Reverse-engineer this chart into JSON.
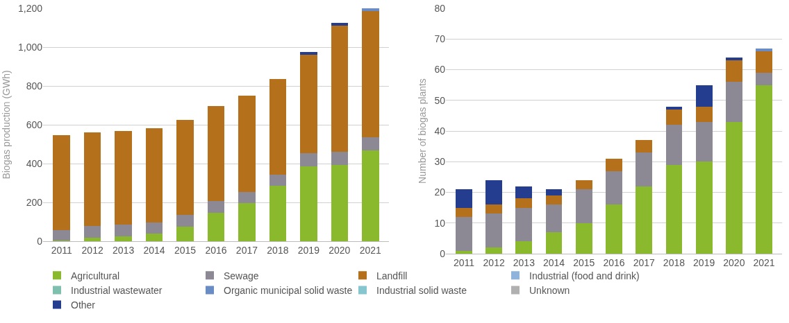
{
  "chart_data": [
    {
      "type": "bar",
      "stacked": true,
      "ylabel": "Biogas production (GWh)",
      "categories": [
        "2011",
        "2012",
        "2013",
        "2014",
        "2015",
        "2016",
        "2017",
        "2018",
        "2019",
        "2020",
        "2021"
      ],
      "ylim": [
        0,
        1200
      ],
      "yticks": [
        0,
        200,
        400,
        600,
        800,
        {
          "value": 1000,
          "label": "1,000"
        },
        {
          "value": 1200,
          "label": "1,200"
        }
      ],
      "grid": "y",
      "legend": "bottom",
      "series": [
        {
          "name": "Agricultural",
          "color": "#8ab92d",
          "values": [
            5,
            19,
            24,
            41,
            76,
            147,
            197,
            287,
            384,
            393,
            467
          ]
        },
        {
          "name": "Sewage",
          "color": "#8c8894",
          "values": [
            52,
            58,
            61,
            56,
            59,
            60,
            58,
            56,
            70,
            68,
            69
          ]
        },
        {
          "name": "Landfill",
          "color": "#b5701c",
          "values": [
            489,
            483,
            482,
            486,
            491,
            490,
            496,
            493,
            508,
            649,
            648
          ]
        },
        {
          "name": "Industrial (food and drink)",
          "color": "#8fb4dc",
          "values": [
            null,
            null,
            null,
            null,
            null,
            null,
            null,
            null,
            null,
            null,
            null
          ]
        },
        {
          "name": "Industrial wastewater",
          "color": "#7fbfad",
          "values": [
            null,
            null,
            null,
            null,
            null,
            null,
            null,
            null,
            null,
            null,
            null
          ]
        },
        {
          "name": "Organic municipal solid waste",
          "color": "#6a8cc4",
          "values": [
            null,
            null,
            null,
            null,
            null,
            null,
            null,
            null,
            null,
            null,
            16
          ]
        },
        {
          "name": "Industrial solid waste",
          "color": "#86c6cf",
          "values": [
            null,
            null,
            null,
            null,
            null,
            null,
            null,
            null,
            null,
            null,
            null
          ]
        },
        {
          "name": "Unknown",
          "color": "#b0b0b0",
          "values": [
            null,
            null,
            null,
            null,
            null,
            null,
            null,
            null,
            null,
            null,
            null
          ]
        },
        {
          "name": "Other",
          "color": "#253d8f",
          "values": [
            null,
            null,
            null,
            null,
            null,
            null,
            null,
            null,
            14,
            16,
            null
          ]
        }
      ]
    },
    {
      "type": "bar",
      "stacked": true,
      "ylabel": "Number of biogas plants",
      "categories": [
        "2011",
        "2012",
        "2013",
        "2014",
        "2015",
        "2016",
        "2017",
        "2018",
        "2019",
        "2020",
        "2021"
      ],
      "ylim": [
        0,
        80
      ],
      "yticks": [
        0,
        10,
        20,
        30,
        40,
        50,
        60,
        70,
        80
      ],
      "grid": "y",
      "legend": false,
      "series": [
        {
          "color": "#8ab92d",
          "values": [
            1,
            2,
            4,
            7,
            10,
            16,
            22,
            29,
            30,
            43,
            55
          ]
        },
        {
          "color": "#8c8894",
          "values": [
            11,
            11,
            11,
            9,
            11,
            11,
            11,
            13,
            13,
            13,
            4
          ]
        },
        {
          "color": "#b5701c",
          "values": [
            3,
            3,
            3,
            3,
            3,
            4,
            4,
            5,
            5,
            7,
            7
          ]
        },
        {
          "color": "#6a8cc4",
          "values": [
            null,
            null,
            null,
            null,
            null,
            null,
            null,
            null,
            null,
            null,
            1
          ]
        },
        {
          "color": "#253d8f",
          "values": [
            6,
            8,
            4,
            2,
            null,
            null,
            null,
            1,
            7,
            1,
            null
          ]
        }
      ]
    }
  ]
}
